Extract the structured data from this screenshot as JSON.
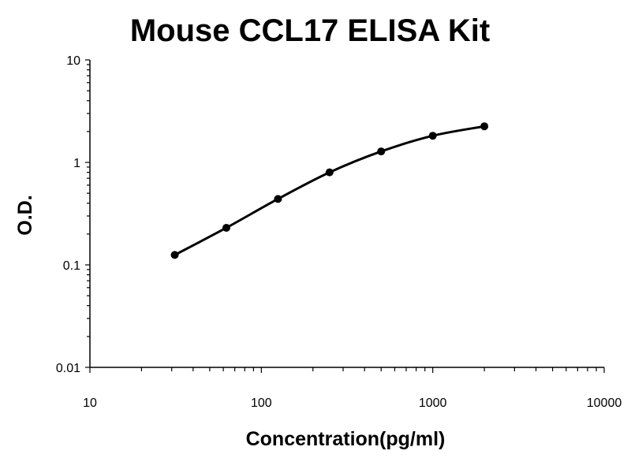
{
  "chart_data": {
    "type": "scatter",
    "title": "Mouse CCL17 ELISA Kit",
    "xlabel": "Concentration(pg/ml)",
    "ylabel": "O.D.",
    "x_scale": "log",
    "y_scale": "log",
    "xlim": [
      10,
      10000
    ],
    "ylim": [
      0.01,
      10
    ],
    "x_ticks": [
      "10",
      "100",
      "1000",
      "10000"
    ],
    "y_ticks": [
      "0.01",
      "0.1",
      "1",
      "10"
    ],
    "grid": false,
    "legend": "none",
    "series": [
      {
        "x": [
          31.25,
          62.5,
          125,
          250,
          500,
          1000,
          2000
        ],
        "y": [
          0.125,
          0.23,
          0.44,
          0.8,
          1.28,
          1.82,
          2.25
        ],
        "show_curve": true
      }
    ],
    "colors": {
      "points": "#000000",
      "curve": "#000000"
    }
  }
}
